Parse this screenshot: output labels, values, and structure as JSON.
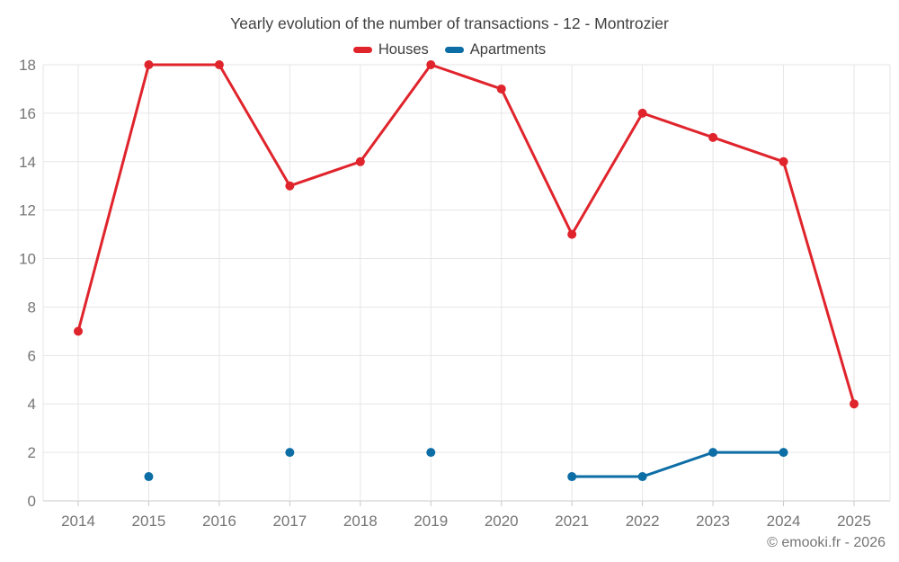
{
  "chart_data": {
    "type": "line",
    "title": "Yearly evolution of the number of transactions - 12 - Montrozier",
    "categories": [
      "2014",
      "2015",
      "2016",
      "2017",
      "2018",
      "2019",
      "2020",
      "2021",
      "2022",
      "2023",
      "2024",
      "2025"
    ],
    "series": [
      {
        "name": "Houses",
        "color": "#e0242c",
        "values": [
          7,
          18,
          18,
          13,
          14,
          18,
          17,
          11,
          16,
          15,
          14,
          4
        ]
      },
      {
        "name": "Apartments",
        "color": "#0d6ea6",
        "values": [
          null,
          1,
          null,
          2,
          null,
          2,
          null,
          1,
          1,
          2,
          2,
          null
        ]
      }
    ],
    "xlabel": "",
    "ylabel": "",
    "ylim": [
      0,
      18
    ],
    "ytick_step": 2,
    "grid": true,
    "legend_position": "top",
    "theme": {
      "title_color": "#3f3f3f",
      "label_color": "#757575",
      "grid_color": "#e6e6e6",
      "axis_color": "#c9c9c9",
      "background": "#ffffff"
    }
  },
  "footer": {
    "credit": "© emooki.fr - 2026"
  }
}
